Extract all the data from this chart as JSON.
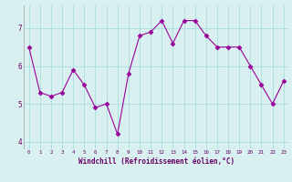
{
  "x": [
    0,
    1,
    2,
    3,
    4,
    5,
    6,
    7,
    8,
    9,
    10,
    11,
    12,
    13,
    14,
    15,
    16,
    17,
    18,
    19,
    20,
    21,
    22,
    23
  ],
  "y": [
    6.5,
    5.3,
    5.2,
    5.3,
    5.9,
    5.5,
    4.9,
    5.0,
    4.2,
    5.8,
    6.8,
    6.9,
    7.2,
    6.6,
    7.2,
    7.2,
    6.8,
    6.5,
    6.5,
    6.5,
    6.0,
    5.5,
    5.0,
    5.6
  ],
  "line_color": "#990099",
  "marker": "D",
  "marker_size": 2.5,
  "bg_color": "#d9f0f0",
  "grid_color": "#aadddd",
  "xlabel": "Windchill (Refroidissement éolien,°C)",
  "xlabel_color": "#660066",
  "tick_color": "#660066",
  "ylim": [
    3.8,
    7.6
  ],
  "xlim": [
    -0.5,
    23.5
  ],
  "yticks": [
    4,
    5,
    6,
    7
  ],
  "xticks": [
    0,
    1,
    2,
    3,
    4,
    5,
    6,
    7,
    8,
    9,
    10,
    11,
    12,
    13,
    14,
    15,
    16,
    17,
    18,
    19,
    20,
    21,
    22,
    23
  ],
  "figsize": [
    3.2,
    2.0
  ],
  "dpi": 100
}
